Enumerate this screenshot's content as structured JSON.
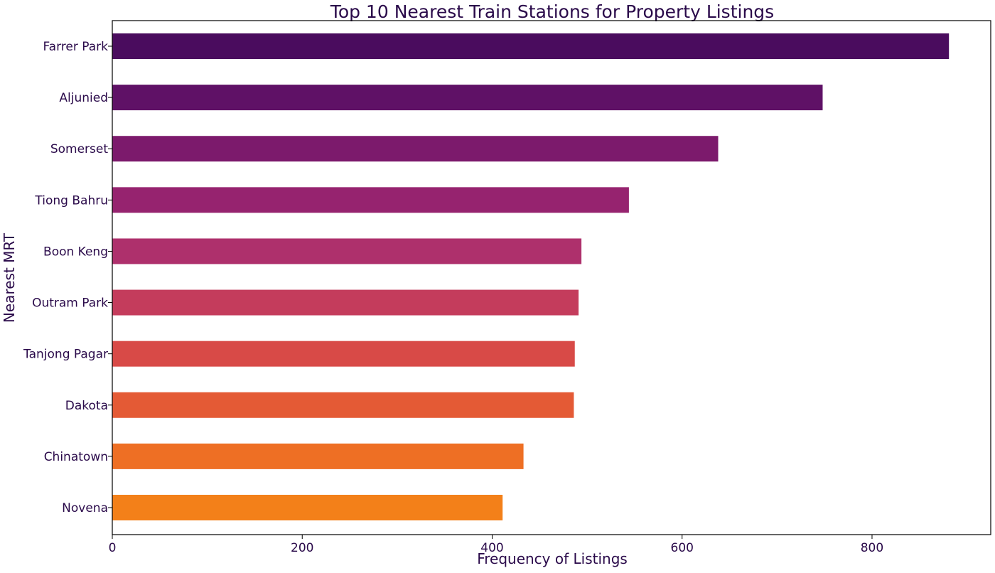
{
  "chart_data": {
    "type": "bar",
    "orientation": "horizontal",
    "title": "Top 10 Nearest Train Stations for Property Listings",
    "xlabel": "Frequency of Listings",
    "ylabel": "Nearest MRT",
    "xlim": [
      0,
      925
    ],
    "xticks": [
      0,
      200,
      400,
      600,
      800
    ],
    "grid": false,
    "categories": [
      "Farrer Park",
      "Aljunied",
      "Somerset",
      "Tiong Bahru",
      "Boon Keng",
      "Outram Park",
      "Tanjong Pagar",
      "Dakota",
      "Chinatown",
      "Novena"
    ],
    "values": [
      881,
      748,
      638,
      544,
      494,
      491,
      487,
      486,
      433,
      411
    ],
    "colors": [
      "#4a0c5e",
      "#5f1166",
      "#7c1a6c",
      "#96236f",
      "#ae306c",
      "#c43c5c",
      "#d84a47",
      "#e45a35",
      "#ee6f24",
      "#f38019"
    ]
  }
}
